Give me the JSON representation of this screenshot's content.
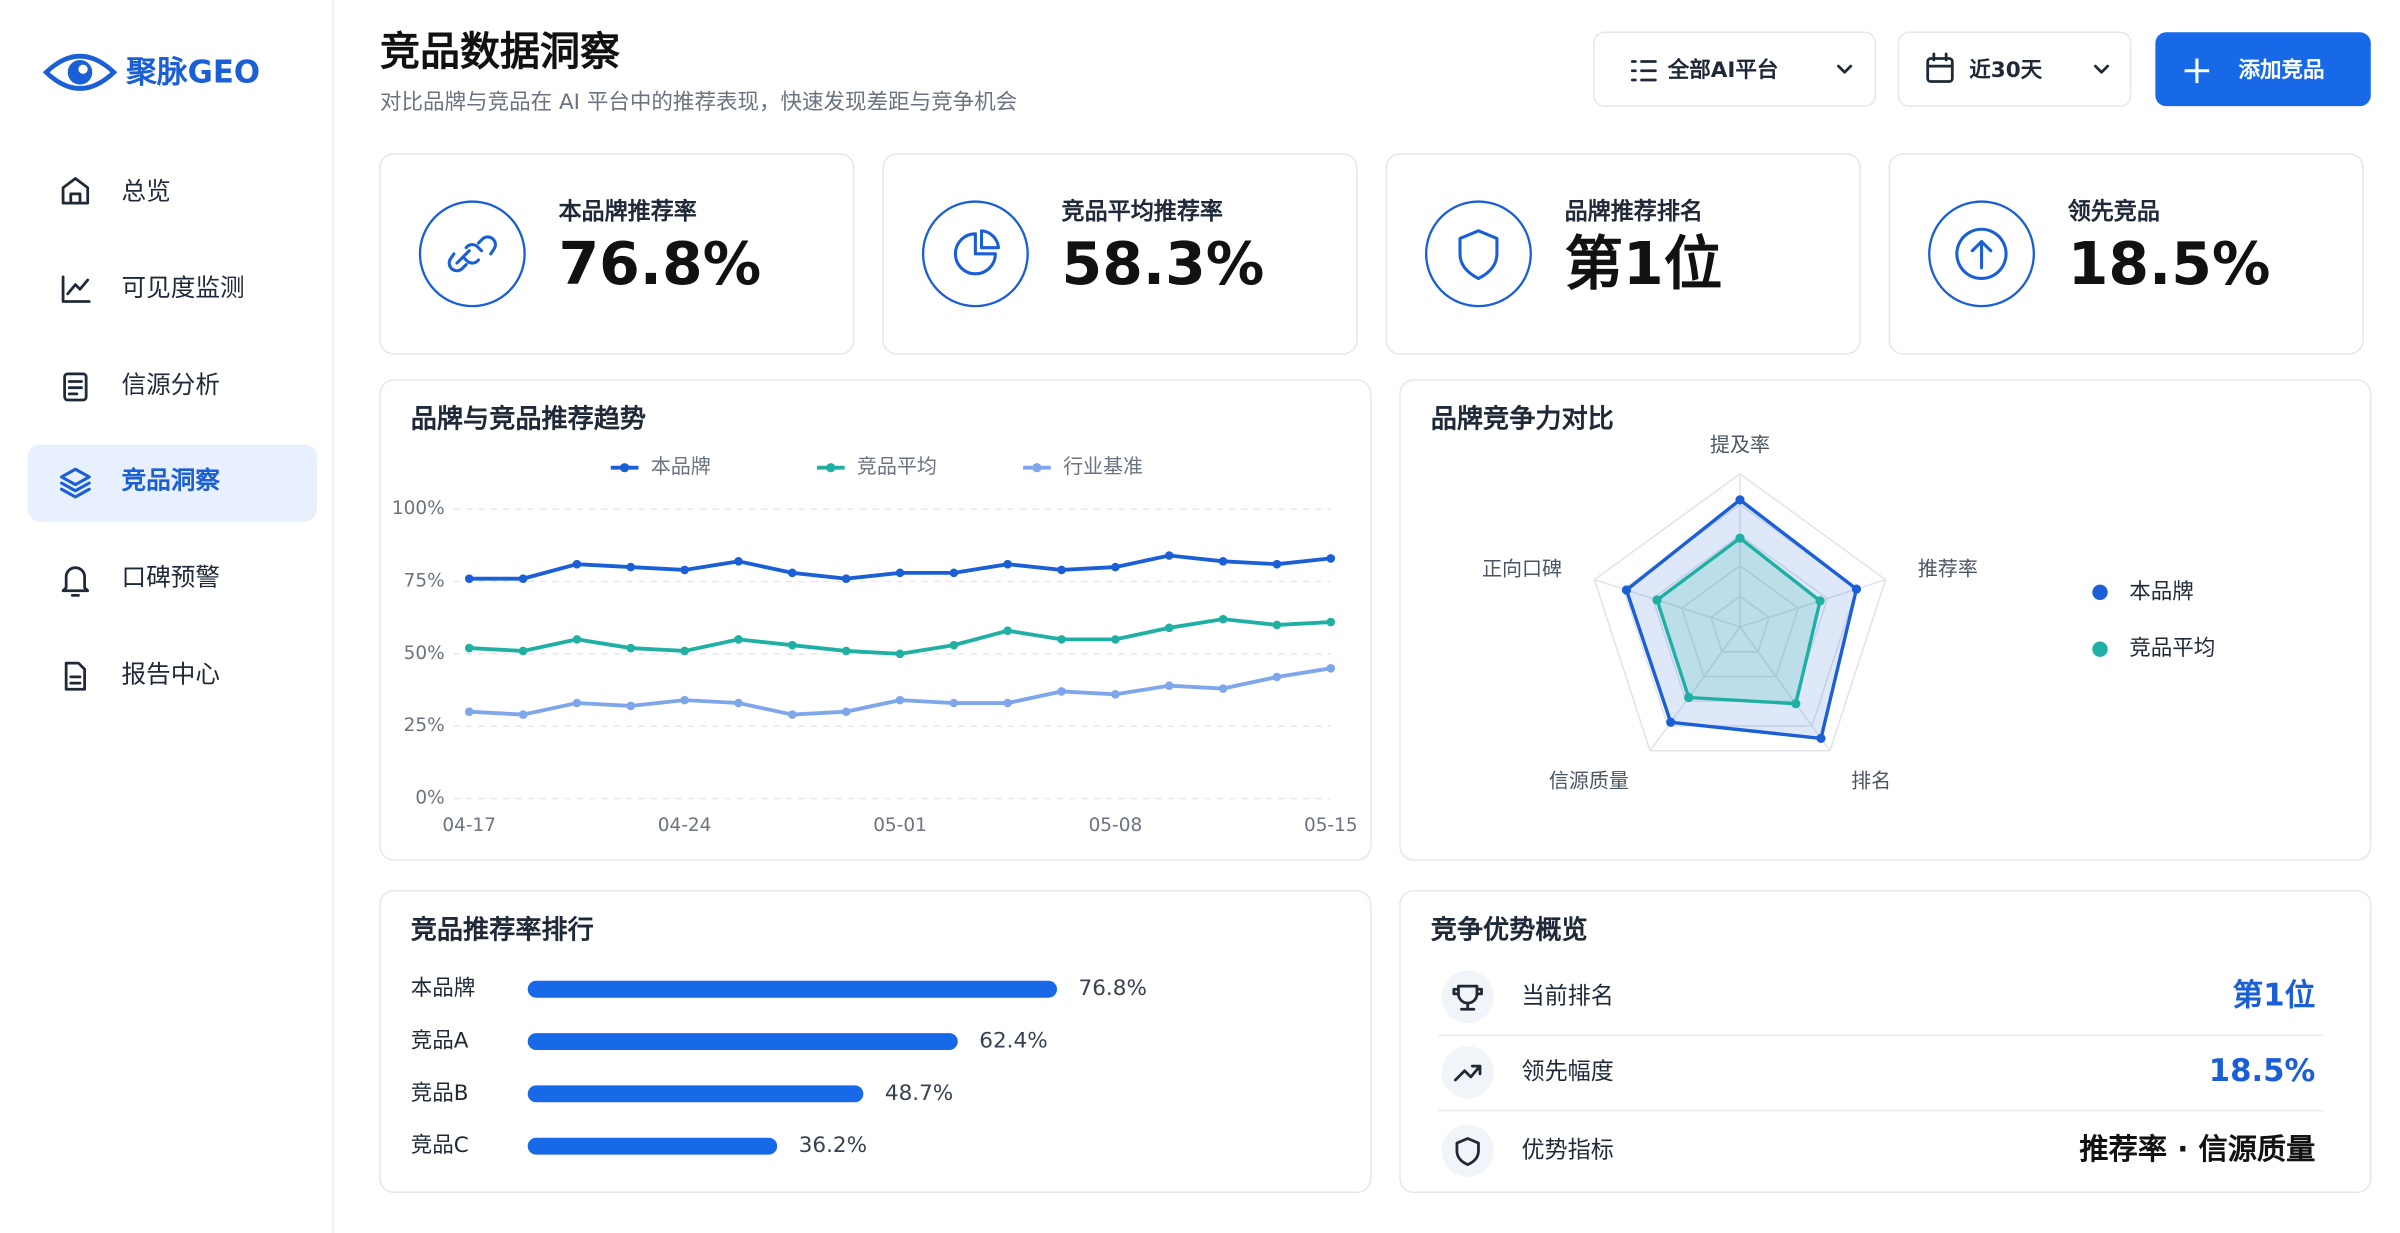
{
  "sidebar": {
    "logo": "聚脉GEO",
    "nav": [
      "总览",
      "可见度监测",
      "信源分析",
      "竞品洞察",
      "口碑预警",
      "报告中心"
    ],
    "active": 3
  },
  "header": {
    "title": "竞品数据洞察",
    "subtitle": "对比品牌与竞品在 AI 平台中的推荐表现，快速发现差距与竞争机会",
    "platform_filter": "全部AI平台",
    "period_filter": "近30天",
    "add_button": "添加竞品"
  },
  "kpis": [
    {
      "label": "本品牌推荐率",
      "value": "76.8%"
    },
    {
      "label": "竞品平均推荐率",
      "value": "58.3%"
    },
    {
      "label": "品牌推荐排名",
      "value": "第1位"
    },
    {
      "label": "领先竞品",
      "value": "18.5%"
    }
  ],
  "chart_data": [
    {
      "type": "line",
      "title": "品牌与竞品推荐趋势",
      "categories": [
        "04-17",
        null,
        null,
        null,
        "04-24",
        null,
        null,
        null,
        "05-01",
        null,
        null,
        null,
        "05-08",
        null,
        null,
        null,
        "05-15"
      ],
      "series": [
        {
          "name": "本品牌",
          "color": "#1a5fd6",
          "values": [
            76,
            76,
            81,
            80,
            79,
            82,
            78,
            76,
            78,
            78,
            81,
            79,
            80,
            84,
            82,
            81,
            83
          ]
        },
        {
          "name": "竞品平均",
          "color": "#1fb0a3",
          "values": [
            52,
            51,
            55,
            52,
            51,
            55,
            53,
            51,
            50,
            53,
            58,
            55,
            55,
            59,
            62,
            60,
            61
          ]
        },
        {
          "name": "行业基准",
          "color": "#7ea6ea",
          "values": [
            30,
            29,
            33,
            32,
            34,
            33,
            29,
            30,
            34,
            33,
            33,
            37,
            36,
            39,
            38,
            42,
            45
          ]
        }
      ],
      "ylim": [
        0,
        100
      ],
      "yticks": [
        {
          "value": 0,
          "label": "0%"
        },
        {
          "value": 25,
          "label": "25%"
        },
        {
          "value": 50,
          "label": "50%"
        },
        {
          "value": 75,
          "label": "75%"
        },
        {
          "value": 100,
          "label": "100%"
        }
      ],
      "grid": true,
      "legend": "top"
    },
    {
      "type": "radar",
      "title": "品牌竞争力对比",
      "categories": [
        "提及率",
        "推荐率",
        "排名",
        "信源质量",
        "正向口碑"
      ],
      "series": [
        {
          "name": "本品牌",
          "color": "#1a5fd6",
          "values": [
            83,
            80,
            90,
            77,
            78
          ]
        },
        {
          "name": "竞品平均",
          "color": "#1fb0a3",
          "values": [
            58,
            55,
            62,
            57,
            57
          ]
        }
      ],
      "rlim": [
        0,
        100
      ],
      "legend": "right"
    },
    {
      "type": "hbar",
      "title": "竞品推荐率排行",
      "categories": [
        "本品牌",
        "竞品A",
        "竞品B",
        "竞品C"
      ],
      "values": [
        76.8,
        62.4,
        48.7,
        36.2
      ],
      "value_labels": [
        "76.8%",
        "62.4%",
        "48.7%",
        "36.2%"
      ],
      "color": "#1769e8",
      "xlim": [
        0,
        100
      ]
    }
  ],
  "advantages": {
    "title": "竞争优势概览",
    "rows": [
      {
        "label": "当前排名",
        "value": "第1位"
      },
      {
        "label": "领先幅度",
        "value": "18.5%"
      },
      {
        "label": "优势指标",
        "value": "推荐率 · 信源质量"
      }
    ]
  }
}
